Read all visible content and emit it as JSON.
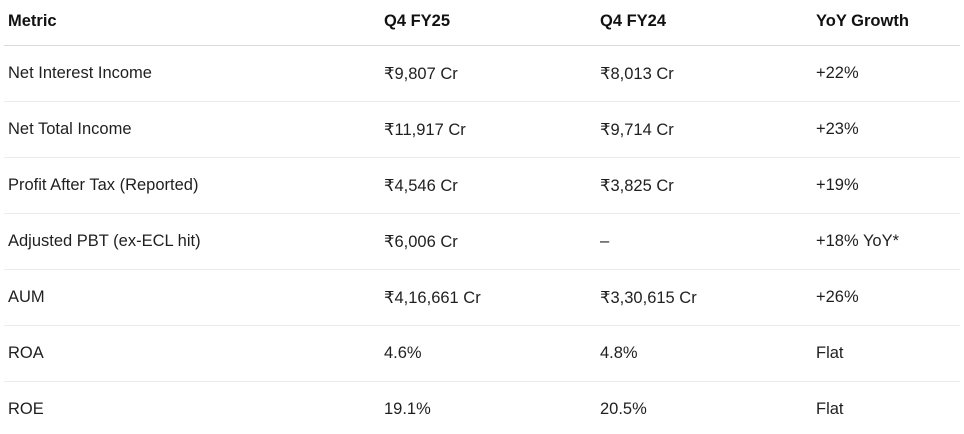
{
  "table": {
    "headers": [
      "Metric",
      "Q4 FY25",
      "Q4 FY24",
      "YoY Growth"
    ],
    "rows": [
      [
        "Net Interest Income",
        "₹9,807 Cr",
        "₹8,013 Cr",
        "+22%"
      ],
      [
        "Net Total Income",
        "₹11,917 Cr",
        "₹9,714 Cr",
        "+23%"
      ],
      [
        "Profit After Tax (Reported)",
        "₹4,546 Cr",
        "₹3,825 Cr",
        "+19%"
      ],
      [
        "Adjusted PBT (ex-ECL hit)",
        "₹6,006 Cr",
        "–",
        "+18% YoY*"
      ],
      [
        "AUM",
        "₹4,16,661 Cr",
        "₹3,30,615 Cr",
        "+26%"
      ],
      [
        "ROA",
        "4.6%",
        "4.8%",
        "Flat"
      ],
      [
        "ROE",
        "19.1%",
        "20.5%",
        "Flat"
      ]
    ]
  }
}
